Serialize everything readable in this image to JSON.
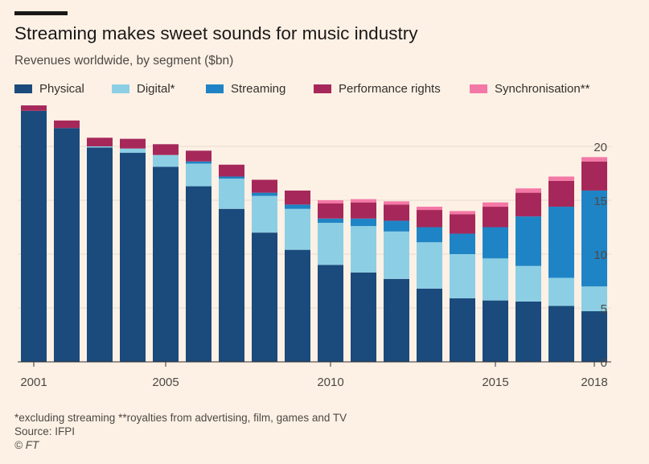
{
  "header": {
    "title": "Streaming makes sweet sounds for music industry",
    "subtitle": "Revenues worldwide, by segment ($bn)"
  },
  "legend": [
    {
      "label": "Physical",
      "color": "#1b4a7c"
    },
    {
      "label": "Digital*",
      "color": "#8ccfe5"
    },
    {
      "label": "Streaming",
      "color": "#1f84c5"
    },
    {
      "label": "Performance rights",
      "color": "#a6285a"
    },
    {
      "label": "Synchronisation**",
      "color": "#f478a6"
    }
  ],
  "footer": {
    "note": "*excluding streaming **royalties from advertising, film, games and TV",
    "source": "Source: IFPI",
    "credit": "© FT"
  },
  "chart_data": {
    "type": "bar",
    "stacked": true,
    "title": "Streaming makes sweet sounds for music industry",
    "ylabel": "Revenues worldwide, by segment ($bn)",
    "xlabel": "",
    "ylim": [
      0,
      23
    ],
    "yticks": [
      0,
      5,
      10,
      15,
      20
    ],
    "y_axis_position": "right",
    "gridlines": true,
    "categories": [
      "2001",
      "2002",
      "2003",
      "2004",
      "2005",
      "2006",
      "2007",
      "2008",
      "2009",
      "2010",
      "2011",
      "2012",
      "2013",
      "2014",
      "2015",
      "2016",
      "2017",
      "2018"
    ],
    "xtick_labels": [
      "2001",
      "2005",
      "2010",
      "2015",
      "2018"
    ],
    "series": [
      {
        "name": "Physical",
        "color": "#1b4a7c",
        "values": [
          23.3,
          21.7,
          19.9,
          19.4,
          18.1,
          16.3,
          14.2,
          12.0,
          10.4,
          9.0,
          8.3,
          7.7,
          6.8,
          5.9,
          5.7,
          5.6,
          5.2,
          4.7
        ]
      },
      {
        "name": "Digital*",
        "color": "#8ccfe5",
        "values": [
          0.0,
          0.0,
          0.1,
          0.4,
          1.1,
          2.1,
          2.8,
          3.4,
          3.8,
          3.9,
          4.3,
          4.4,
          4.3,
          4.1,
          3.9,
          3.3,
          2.6,
          2.3
        ]
      },
      {
        "name": "Streaming",
        "color": "#1f84c5",
        "values": [
          0.0,
          0.0,
          0.0,
          0.0,
          0.0,
          0.2,
          0.2,
          0.3,
          0.4,
          0.4,
          0.7,
          1.0,
          1.4,
          1.9,
          2.9,
          4.6,
          6.6,
          8.9
        ]
      },
      {
        "name": "Performance rights",
        "color": "#a6285a",
        "values": [
          0.5,
          0.7,
          0.8,
          0.9,
          1.0,
          1.0,
          1.1,
          1.2,
          1.3,
          1.4,
          1.5,
          1.5,
          1.6,
          1.8,
          1.9,
          2.2,
          2.4,
          2.7
        ]
      },
      {
        "name": "Synchronisation**",
        "color": "#f478a6",
        "values": [
          0.0,
          0.0,
          0.0,
          0.0,
          0.0,
          0.0,
          0.0,
          0.0,
          0.0,
          0.3,
          0.3,
          0.3,
          0.3,
          0.3,
          0.4,
          0.4,
          0.4,
          0.4
        ]
      }
    ]
  }
}
